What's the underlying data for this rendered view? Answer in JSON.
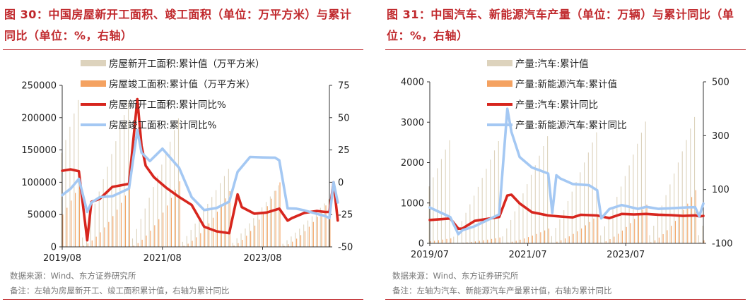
{
  "left": {
    "title": "图 30：中国房屋新开工面积、竣工面积（单位：万平方米）与累计同比（单位：%，右轴）",
    "source": "数据来源：Wind、东方证券研究所",
    "note": "备注：左轴为房屋新开工、竣工面积累计值，右轴为累计同比"
  },
  "right": {
    "title": "图 31：中国汽车、新能源汽车产量（单位：万辆）与累计同比（单位：%，右轴）",
    "source": "数据来源：Wind、东方证券研究所",
    "note": "备注：左轴为汽车、新能源汽车产量累计值，右轴为累计同比"
  },
  "colors": {
    "accent_red": "#c0282c",
    "bar_tan": "#ddd3bd",
    "bar_orange": "#f4a261",
    "line_red": "#d7261e",
    "line_blue": "#a4c8f3"
  },
  "chart_data": [
    {
      "type": "bar+line",
      "x_ticks": [
        "2019/08",
        "2021/08",
        "2023/08"
      ],
      "x_start": "2019/08",
      "x_end": "2024/12",
      "ylim_left": [
        0,
        250000
      ],
      "yticks_left": [
        "250000",
        "200000",
        "150000",
        "100000",
        "50000",
        "0"
      ],
      "ylim_right": [
        -50,
        75
      ],
      "yticks_right": [
        "75",
        "50",
        "25",
        "0",
        "-25",
        "-50"
      ],
      "legend": [
        "房屋新开工面积:累计值（万平方米）",
        "房屋竣工面积:累计值（万平方米）",
        "房屋新开工面积:累计同比%",
        "房屋竣工面积:累计同比%"
      ],
      "series": [
        {
          "name": "房屋新开工面积:累计值（万平方米）",
          "kind": "bar",
          "color": "#ddd3bd",
          "axis": "left",
          "annual_dec": [
            227154,
            224433,
            198895,
            120587,
            95376,
            73893
          ],
          "months_from": "2019/08"
        },
        {
          "name": "房屋竣工面积:累计值（万平方米）",
          "kind": "bar",
          "color": "#f4a261",
          "axis": "left",
          "annual_dec": [
            95942,
            91218,
            101412,
            86222,
            99831,
            73743
          ],
          "months_from": "2019/08"
        },
        {
          "name": "房屋新开工面积:累计同比%",
          "kind": "line",
          "color": "#d7261e",
          "axis": "right",
          "x": [
            "2019/08",
            "2019/10",
            "2019/12",
            "2020/02",
            "2020/03",
            "2020/05",
            "2020/08",
            "2020/12",
            "2021/02",
            "2021/03",
            "2021/04",
            "2021/06",
            "2021/09",
            "2021/12",
            "2022/03",
            "2022/06",
            "2022/09",
            "2022/12",
            "2023/02",
            "2023/03",
            "2023/06",
            "2023/09",
            "2023/12",
            "2024/02",
            "2024/03",
            "2024/06",
            "2024/09",
            "2024/11",
            "2024/12",
            "2025/01",
            "2025/02"
          ],
          "y": [
            8.9,
            10,
            8.5,
            -44.9,
            -15.2,
            -12.8,
            -3.6,
            -1.2,
            64.3,
            28.2,
            12.8,
            3.8,
            -4.5,
            -11.4,
            -17.5,
            -34.4,
            -38.0,
            -39.4,
            -9.4,
            -19.2,
            -24.3,
            -23.4,
            -20.4,
            -29.7,
            -27.8,
            -23.7,
            -22.2,
            -23.0,
            -23.0,
            0,
            -29.6
          ]
        },
        {
          "name": "房屋竣工面积:累计同比%",
          "kind": "line",
          "color": "#a4c8f3",
          "axis": "right",
          "x": [
            "2019/08",
            "2019/10",
            "2019/12",
            "2020/02",
            "2020/03",
            "2020/05",
            "2020/08",
            "2020/12",
            "2021/02",
            "2021/03",
            "2021/05",
            "2021/08",
            "2021/12",
            "2022/03",
            "2022/06",
            "2022/09",
            "2022/12",
            "2023/02",
            "2023/05",
            "2023/08",
            "2023/11",
            "2023/12",
            "2024/02",
            "2024/04",
            "2024/06",
            "2024/09",
            "2024/11",
            "2024/12",
            "2025/01",
            "2025/02"
          ],
          "y": [
            -10,
            -5,
            2.6,
            -22.9,
            -15.8,
            -11.5,
            -10.8,
            -4.9,
            40.4,
            22.9,
            16.4,
            26.0,
            11.2,
            -11.5,
            -21.5,
            -19.9,
            -15.0,
            8.0,
            19.6,
            19.2,
            19.0,
            17.0,
            -20.2,
            -20.4,
            -21.8,
            -24.4,
            -26.2,
            -27.7,
            0,
            -15.6
          ]
        }
      ]
    },
    {
      "type": "bar+line",
      "x_ticks": [
        "2019/07",
        "2021/07",
        "2023/07"
      ],
      "x_start": "2019/07",
      "x_end": "2025/02",
      "ylim_left": [
        0,
        4000
      ],
      "yticks_left": [
        "4000",
        "3000",
        "2000",
        "1000",
        "0"
      ],
      "ylim_right": [
        -100,
        500
      ],
      "yticks_right": [
        "500",
        "300",
        "100",
        "-100"
      ],
      "legend": [
        "产量:汽车:累计值",
        "产量:新能源汽车:累计值",
        "产量:汽车:累计同比",
        "产量:新能源汽车:累计同比"
      ],
      "series": [
        {
          "name": "产量:汽车:累计值",
          "kind": "bar",
          "color": "#ddd3bd",
          "axis": "left",
          "annual_dec": [
            2553,
            2532,
            2653,
            2748,
            3016,
            3128
          ]
        },
        {
          "name": "产量:新能源汽车:累计值",
          "kind": "bar",
          "color": "#f4a261",
          "axis": "left",
          "annual_dec": [
            124,
            145,
            367,
            706,
            959,
            1317
          ]
        },
        {
          "name": "产量:汽车:累计同比",
          "kind": "line",
          "color": "#d7261e",
          "axis": "right",
          "x": [
            "2019/07",
            "2019/12",
            "2020/02",
            "2020/03",
            "2020/06",
            "2020/12",
            "2021/02",
            "2021/03",
            "2021/05",
            "2021/08",
            "2021/12",
            "2022/03",
            "2022/06",
            "2022/08",
            "2022/12",
            "2023/03",
            "2023/06",
            "2023/09",
            "2023/12",
            "2024/03",
            "2024/06",
            "2024/09",
            "2024/12",
            "2025/01",
            "2025/02"
          ],
          "y": [
            -13.4,
            -7.5,
            -45.8,
            -44.9,
            -16.8,
            -2.0,
            77.9,
            80.7,
            48.3,
            15.8,
            3.4,
            -0.5,
            -3.6,
            6.0,
            3.4,
            -6.1,
            9.3,
            7.5,
            9.3,
            6.4,
            4.9,
            2.0,
            3.7,
            0,
            2.0
          ]
        },
        {
          "name": "产量:新能源汽车:累计同比",
          "kind": "line",
          "color": "#a4c8f3",
          "axis": "right",
          "x": [
            "2019/07",
            "2019/12",
            "2020/02",
            "2020/03",
            "2020/06",
            "2020/12",
            "2021/02",
            "2021/03",
            "2021/05",
            "2021/08",
            "2021/12",
            "2022/01",
            "2022/02",
            "2022/03",
            "2022/06",
            "2022/10",
            "2022/12",
            "2023/01",
            "2023/03",
            "2023/06",
            "2023/10",
            "2023/12",
            "2024/03",
            "2024/06",
            "2024/10",
            "2024/12",
            "2025/01",
            "2025/02"
          ],
          "y": [
            33.0,
            -2.3,
            -66.0,
            -51.3,
            -36.5,
            7.5,
            400,
            314.0,
            220.6,
            181.8,
            159.5,
            13.2,
            152.8,
            140.8,
            120.4,
            116.0,
            96.9,
            -6.9,
            27.7,
            42.4,
            28.0,
            35.8,
            28.2,
            30.1,
            33.5,
            34.4,
            0,
            47.7
          ]
        }
      ]
    }
  ]
}
